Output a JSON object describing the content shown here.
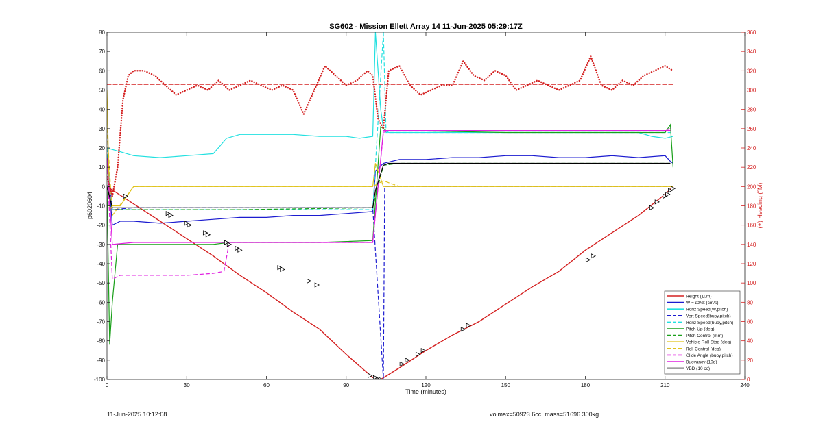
{
  "chart_data": {
    "type": "line",
    "title": "SG602 - Mission Ellett Array 14 11-Jun-2025 05:29:17Z",
    "xlabel": "Time (minutes)",
    "ylabel": "p6020604",
    "ylabel_right": "(+) Heading (°M)",
    "xlim": [
      0,
      240
    ],
    "ylim": [
      -100,
      80
    ],
    "ylim_right": [
      0,
      360
    ],
    "xticks": [
      0,
      30,
      60,
      90,
      120,
      150,
      180,
      210,
      240
    ],
    "yticks": [
      -100,
      -90,
      -80,
      -70,
      -60,
      -50,
      -40,
      -30,
      -20,
      -10,
      0,
      10,
      20,
      30,
      40,
      50,
      60,
      70,
      80
    ],
    "yticks_right": [
      0,
      20,
      40,
      60,
      80,
      100,
      120,
      140,
      160,
      180,
      200,
      220,
      240,
      260,
      280,
      300,
      320,
      340,
      360
    ],
    "grid": false,
    "legend_position": "bottom-right",
    "series": [
      {
        "name": "Height (10m)",
        "color": "#d42020",
        "style": "solid",
        "x": [
          0,
          10,
          20,
          30,
          40,
          50,
          60,
          70,
          80,
          90,
          100,
          103,
          110,
          120,
          130,
          140,
          150,
          160,
          170,
          180,
          190,
          200,
          210,
          213
        ],
        "y": [
          0,
          -9,
          -18,
          -27,
          -36,
          -46,
          -55,
          -65,
          -74,
          -87,
          -99,
          -100,
          -94,
          -85,
          -77,
          -70,
          -61,
          -52,
          -44,
          -33,
          -24,
          -15,
          -4,
          0
        ]
      },
      {
        "name": "W = dz/dt (cm/s)",
        "color": "#1c1cd0",
        "style": "solid",
        "x": [
          0,
          2,
          5,
          10,
          20,
          30,
          40,
          50,
          60,
          70,
          80,
          90,
          100,
          101,
          104,
          110,
          120,
          130,
          140,
          150,
          160,
          170,
          180,
          190,
          200,
          210,
          212,
          213
        ],
        "y": [
          16,
          -20,
          -18,
          -18,
          -19,
          -18,
          -17,
          -16,
          -16,
          -15,
          -15,
          -14,
          -13,
          8,
          12,
          14,
          14,
          15,
          15,
          16,
          16,
          15,
          15,
          16,
          15,
          16,
          13,
          12
        ]
      },
      {
        "name": "Horiz Speed(W,pitch)",
        "color": "#22e0e0",
        "style": "solid",
        "x": [
          0,
          5,
          10,
          20,
          30,
          40,
          45,
          50,
          60,
          70,
          80,
          90,
          95,
          100,
          101,
          103,
          104,
          106,
          110,
          120,
          130,
          140,
          150,
          160,
          170,
          180,
          190,
          200,
          205,
          210,
          213
        ],
        "y": [
          20,
          18,
          16,
          15,
          16,
          17,
          25,
          27,
          27,
          27,
          26,
          26,
          25,
          26,
          80,
          40,
          30,
          28,
          28,
          28,
          28,
          28,
          28,
          28,
          28,
          28,
          28,
          28,
          26,
          25,
          26
        ]
      },
      {
        "name": "Vert Speed(buoy,pitch)",
        "color": "#1c1cd0",
        "style": "dashed",
        "x": [
          0,
          2,
          10,
          50,
          100,
          104,
          104.5,
          110,
          150,
          212
        ],
        "y": [
          15,
          -12,
          -11,
          -11,
          -11,
          -100,
          0,
          0,
          0,
          0
        ]
      },
      {
        "name": "Horiz Speed(buoy,pitch)",
        "color": "#22e0e0",
        "style": "dashed",
        "x": [
          0,
          2,
          50,
          100,
          104,
          105,
          150,
          212
        ],
        "y": [
          20,
          -12,
          -12,
          -12,
          80,
          28,
          28,
          28
        ]
      },
      {
        "name": "Pitch Up (deg)",
        "color": "#1aa01a",
        "style": "solid",
        "x": [
          0,
          1,
          2,
          4,
          10,
          20,
          30,
          40,
          46,
          60,
          80,
          100,
          103,
          104,
          105,
          110,
          150,
          200,
          210,
          212,
          213
        ],
        "y": [
          0,
          -82,
          -60,
          -30,
          -30,
          -30,
          -30,
          -30,
          -29,
          -29,
          -29,
          -28,
          31,
          30,
          29,
          29,
          28,
          28,
          28,
          32,
          10
        ]
      },
      {
        "name": "Pitch Control (mm)",
        "color": "#1aa01a",
        "style": "dashed",
        "x": [
          0,
          2,
          50,
          100,
          104,
          110,
          150,
          212
        ],
        "y": [
          0,
          -12,
          -12,
          -11,
          11,
          12,
          12,
          12
        ]
      },
      {
        "name": "Vehicle Roll Stbd (deg)",
        "color": "#e0c21a",
        "style": "solid",
        "x": [
          0,
          1,
          2,
          5,
          10,
          20,
          30,
          40,
          50,
          60,
          70,
          80,
          90,
          100,
          101,
          104,
          110,
          120,
          140,
          160,
          180,
          200,
          210,
          213
        ],
        "y": [
          50,
          -12,
          -10,
          -10,
          0,
          0,
          0,
          0,
          0,
          0,
          0,
          0,
          0,
          0,
          12,
          0,
          0,
          0,
          0,
          0,
          0,
          0,
          0,
          0
        ]
      },
      {
        "name": "Roll Control (deg)",
        "color": "#e0c21a",
        "style": "dashed",
        "x": [
          0,
          2,
          10,
          50,
          100,
          104,
          110,
          150,
          212
        ],
        "y": [
          30,
          -15,
          0,
          0,
          0,
          3,
          0,
          0,
          0
        ]
      },
      {
        "name": "Glide Angle (buoy,pitch)",
        "color": "#e020e0",
        "style": "dashed",
        "x": [
          0,
          2,
          5,
          10,
          20,
          30,
          40,
          44,
          46,
          50,
          60,
          80,
          100,
          104,
          106,
          110,
          150,
          200,
          210,
          212
        ],
        "y": [
          15,
          -48,
          -46,
          -46,
          -46,
          -46,
          -45,
          -44,
          -29,
          -29,
          -29,
          -29,
          -29,
          28,
          29,
          29,
          29,
          29,
          29,
          30
        ]
      },
      {
        "name": "Buoyancy (10g)",
        "color": "#e020e0",
        "style": "solid",
        "x": [
          0,
          2,
          10,
          50,
          100,
          104,
          110,
          150,
          212
        ],
        "y": [
          15,
          -30,
          -29,
          -29,
          -29,
          29,
          29,
          29,
          29
        ]
      },
      {
        "name": "VBD (10 cc)",
        "color": "#000000",
        "style": "solid",
        "x": [
          0,
          2,
          10,
          50,
          100,
          101,
          104,
          106,
          110,
          150,
          212
        ],
        "y": [
          0,
          -11,
          -11,
          -11,
          -11,
          -2,
          11,
          12,
          12,
          12,
          12
        ]
      }
    ],
    "heading_series": [
      {
        "name": "Heading",
        "color": "#d42020",
        "style": "dotted",
        "axis": "right",
        "x": [
          0,
          2,
          4,
          6,
          8,
          10,
          14,
          18,
          22,
          26,
          30,
          34,
          38,
          42,
          46,
          50,
          54,
          58,
          62,
          66,
          70,
          74,
          78,
          82,
          86,
          90,
          94,
          98,
          100,
          102,
          104,
          106,
          110,
          114,
          118,
          122,
          126,
          130,
          134,
          138,
          142,
          146,
          150,
          154,
          158,
          162,
          166,
          170,
          174,
          178,
          182,
          186,
          190,
          194,
          198,
          202,
          206,
          210,
          213
        ],
        "y": [
          210,
          190,
          220,
          290,
          315,
          320,
          320,
          315,
          305,
          295,
          300,
          305,
          300,
          310,
          300,
          305,
          310,
          305,
          300,
          305,
          300,
          275,
          300,
          325,
          315,
          305,
          310,
          320,
          315,
          270,
          260,
          320,
          325,
          305,
          295,
          300,
          305,
          305,
          330,
          315,
          310,
          320,
          315,
          300,
          305,
          310,
          305,
          300,
          305,
          310,
          335,
          305,
          300,
          310,
          305,
          315,
          320,
          325,
          320
        ]
      },
      {
        "name": "Mean Heading",
        "color": "#d42020",
        "style": "dashed",
        "axis": "right",
        "x": [
          0,
          213
        ],
        "y": [
          306,
          306
        ]
      }
    ],
    "legend": [
      "Height (10m)",
      "W = dz/dt (cm/s)",
      "Horiz Speed(W,pitch)",
      "Vert Speed(buoy,pitch)",
      "Horiz Speed(buoy,pitch)",
      "Pitch Up (deg)",
      "Pitch Control (mm)",
      "Vehicle Roll Stbd (deg)",
      "Roll Control (deg)",
      "Glide Angle (buoy,pitch)",
      "Buoyancy (10g)",
      "VBD (10 cc)"
    ],
    "markers": {
      "x": [
        0,
        7,
        23,
        24,
        30,
        31,
        37,
        38,
        45,
        46,
        49,
        50,
        65,
        66,
        76,
        79,
        99,
        101,
        102,
        103,
        111,
        113,
        117,
        119,
        134,
        136,
        181,
        183,
        205,
        207,
        210,
        211,
        212,
        213
      ],
      "y": [
        0,
        -5,
        -14,
        -15,
        -19,
        -20,
        -24,
        -25,
        -29,
        -30,
        -32,
        -33,
        -42,
        -43,
        -49,
        -51,
        -98,
        -99,
        -100,
        -100,
        -92,
        -90,
        -87,
        -85,
        -74,
        -72,
        -38,
        -36,
        -11,
        -8,
        -5,
        -4,
        -2,
        -1
      ]
    }
  },
  "footer": {
    "timestamp": "11-Jun-2025 10:12:08",
    "mass_info": "volmax=50923.6cc, mass=51696.300kg"
  }
}
